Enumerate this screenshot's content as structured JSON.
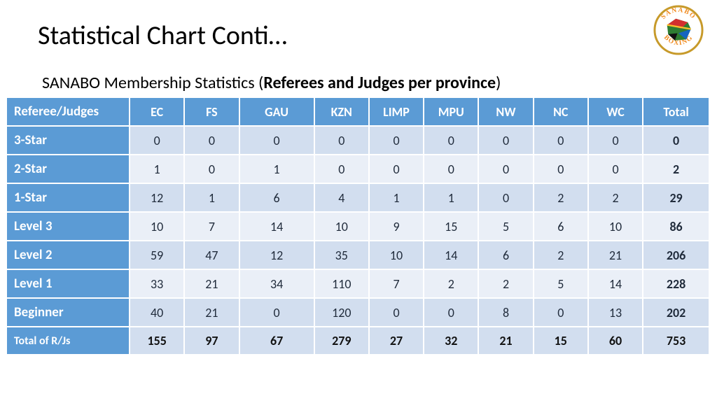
{
  "title": "Statistical Chart Conti…",
  "subtitle_prefix": "SANABO Membership Statistics (",
  "subtitle_bold": "Referees and Judges per province",
  "subtitle_suffix": ")",
  "logo": {
    "top_text": "SANABO",
    "bottom_text": "BOXING",
    "ring_color": "#c79a2a",
    "text_color": "#f08a1d"
  },
  "table": {
    "corner": "Referee/Judges",
    "columns": [
      "EC",
      "FS",
      "GAU",
      "KZN",
      "LIMP",
      "MPU",
      "NW",
      "NC",
      "WC",
      "Total"
    ],
    "header_bg": "#5b9bd5",
    "header_fg": "#ffffff",
    "band_a_bg": "#d2deef",
    "band_b_bg": "#eaeff7",
    "rows": [
      {
        "label": "3-Star",
        "cells": [
          0,
          0,
          0,
          0,
          0,
          0,
          0,
          0,
          0
        ],
        "total": 0,
        "band": "a"
      },
      {
        "label": "2-Star",
        "cells": [
          1,
          0,
          1,
          0,
          0,
          0,
          0,
          0,
          0
        ],
        "total": 2,
        "band": "b"
      },
      {
        "label": "1-Star",
        "cells": [
          12,
          1,
          6,
          4,
          1,
          1,
          0,
          2,
          2
        ],
        "total": 29,
        "band": "a"
      },
      {
        "label": "Level 3",
        "cells": [
          10,
          7,
          14,
          10,
          9,
          15,
          5,
          6,
          10
        ],
        "total": 86,
        "band": "b"
      },
      {
        "label": "Level 2",
        "cells": [
          59,
          47,
          12,
          35,
          10,
          14,
          6,
          2,
          21
        ],
        "total": 206,
        "band": "a"
      },
      {
        "label": "Level 1",
        "cells": [
          33,
          21,
          34,
          110,
          7,
          2,
          2,
          5,
          14
        ],
        "total": 228,
        "band": "b"
      },
      {
        "label": "Beginner",
        "cells": [
          40,
          21,
          0,
          120,
          0,
          0,
          8,
          0,
          13
        ],
        "total": 202,
        "band": "a"
      }
    ],
    "footer": {
      "label": "Total of R/Js",
      "cells": [
        155,
        97,
        67,
        279,
        27,
        32,
        21,
        15,
        60
      ],
      "total": 753
    }
  }
}
